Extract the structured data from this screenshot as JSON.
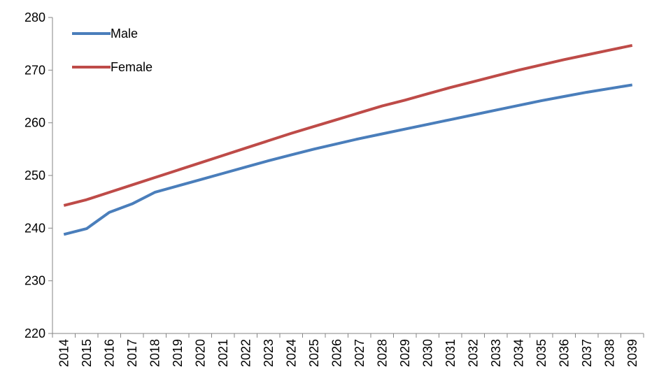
{
  "chart_data": {
    "type": "line",
    "title": "",
    "xlabel": "",
    "ylabel": "",
    "ylim": [
      220,
      280
    ],
    "yticks": [
      "220",
      "230",
      "240",
      "250",
      "260",
      "270",
      "280"
    ],
    "grid": false,
    "legend_position": "top-left",
    "categories": [
      "2014",
      "2015",
      "2016",
      "2017",
      "2018",
      "2019",
      "2020",
      "2021",
      "2022",
      "2023",
      "2024",
      "2025",
      "2026",
      "2027",
      "2028",
      "2029",
      "2030",
      "2031",
      "2032",
      "2033",
      "2034",
      "2035",
      "2036",
      "2037",
      "2038",
      "2039"
    ],
    "series": [
      {
        "name": "Male",
        "color": "#4a7ebb",
        "values": [
          238.8,
          239.9,
          243.0,
          244.6,
          246.8,
          248.0,
          249.2,
          250.4,
          251.6,
          252.8,
          253.9,
          255.0,
          256.0,
          257.0,
          257.9,
          258.8,
          259.7,
          260.6,
          261.5,
          262.4,
          263.3,
          264.2,
          265.0,
          265.8,
          266.5,
          267.2
        ]
      },
      {
        "name": "Female",
        "color": "#be4b48",
        "values": [
          244.3,
          245.4,
          246.8,
          248.2,
          249.6,
          251.0,
          252.4,
          253.8,
          255.2,
          256.6,
          258.0,
          259.3,
          260.6,
          261.9,
          263.2,
          264.3,
          265.5,
          266.7,
          267.8,
          268.9,
          270.0,
          271.0,
          272.0,
          272.9,
          273.8,
          274.7
        ]
      }
    ]
  }
}
